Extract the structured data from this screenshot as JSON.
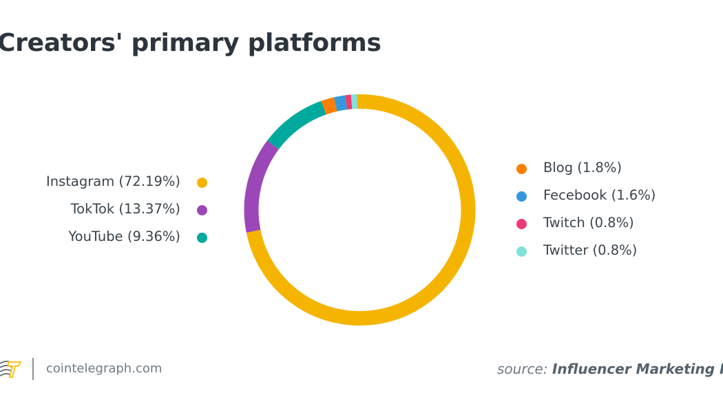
{
  "chart_data": {
    "type": "pie",
    "variant": "donut",
    "title": "Creators' primary platforms",
    "slices": [
      {
        "label": "Instagram (72.19%)",
        "name": "Instagram",
        "value": 72.19,
        "color": "#F5B400"
      },
      {
        "label": "TokTok (13.37%)",
        "name": "TokTok",
        "value": 13.37,
        "color": "#9B47B8"
      },
      {
        "label": "YouTube (9.36%)",
        "name": "YouTube",
        "value": 9.36,
        "color": "#00A99D"
      },
      {
        "label": "Blog (1.8%)",
        "name": "Blog",
        "value": 1.8,
        "color": "#FF7F00"
      },
      {
        "label": "Fecebook (1.6%)",
        "name": "Fecebook",
        "value": 1.6,
        "color": "#3498DB"
      },
      {
        "label": "Twitch (0.8%)",
        "name": "Twitch",
        "value": 0.8,
        "color": "#EE3A73"
      },
      {
        "label": "Twitter (0.8%)",
        "name": "Twitter",
        "value": 0.8,
        "color": "#7FE3DA"
      }
    ],
    "legend_placement": "left and right of donut"
  },
  "footer": {
    "site": "cointelegraph.com",
    "source_prefix": "source:",
    "source_name": "Influencer Marketing Hub",
    "logo_icon": "cointelegraph-logo-icon"
  }
}
